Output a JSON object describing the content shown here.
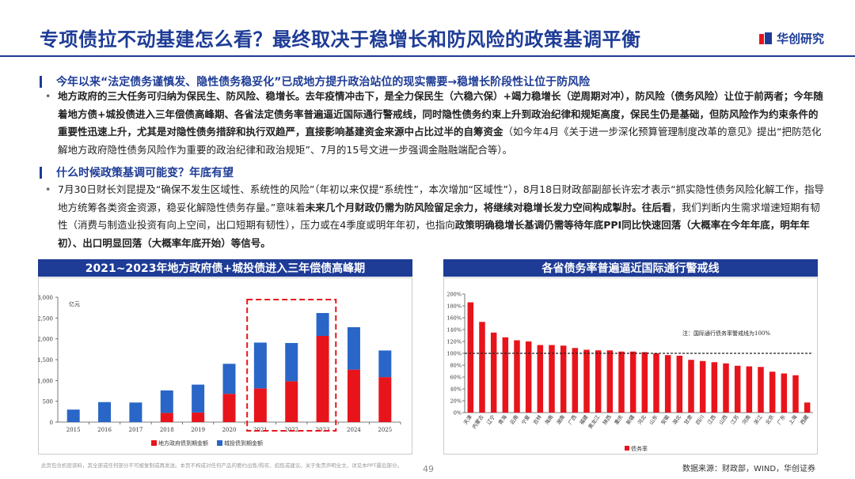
{
  "header": {
    "title": "专项债拉不动基建怎么看？最终取决于稳增长和防风险的政策基调平衡",
    "logo_text": "华创研究"
  },
  "section1": {
    "heading": "今年以来“法定债务谨慎发、隐性债务稳妥化”已成地方提升政治站位的现实需要→稳增长阶段性让位于防风险",
    "bullet": "•",
    "p_bold": "地方政府的三大任务可归纳为保民生、防风险、稳增长。去年疫情冲击下，是全力保民生（六稳六保）+竭力稳增长（逆周期对冲），防风险（债务风险）让位于前两者；今年随着地方债+城投债进入三年偿债高峰期、各省法定债务率普遍逼近国际通行警戒线，同时隐性债务约束上升到政治纪律和规矩高度，保民生仍是基础，但防风险作为约束条件的重要性迅速上升，尤其是对隐性债务措辞和执行双趋严，直接影响基建资金来源中占比过半的自筹资金",
    "p_normal": "（如今年4月《关于进一步深化预算管理制度改革的意见》提出“把防范化解地方政府隐性债务风险作为重要的政治纪律和政治规矩”、7月的15号文进一步强调金融融端配合等）。"
  },
  "section2": {
    "heading": "什么时候政策基调可能变？年底有望",
    "bullet": "•",
    "p1": "7月30日财长刘昆提及“确保不发生区域性、系统性的风险”（年初以来仅提“系统性”，本次增加“区域性”），8月18日财政部副部长许宏才表示“抓实隐性债务风险化解工作，指导地方统筹各类资金资源，稳妥化解隐性债务存量。”意味着",
    "p1_bold": "未来几个月财政仍需为防风险留足余力，将继续对稳增长发力空间构成掣肘。",
    "p2_bold": "往后看",
    "p2": "，我们判断内生需求增速短期有韧性（消费与制造业投资有向上空间，出口短期有韧性），压力或在4季度或明年年初，也指向",
    "p2_bold2": "政策明确稳增长基调仍需等待年底PPI同比快速回落（大概率在今年年底，明年年初）、出口明显回落（大概率年底开始）等信号。"
  },
  "left_chart": {
    "title": "2021~2023年地方政府债+城投债进入三年偿债高峰期",
    "unit": "亿元",
    "legend_local": "地方政府债到期金额",
    "legend_lgfv": "城投债到期金额"
  },
  "right_chart": {
    "title": "各省债务率普遍逼近国际通行警戒线",
    "note": "注：国际通行债务率警戒线为100%",
    "legend": "债务率"
  },
  "chart_data": [
    {
      "type": "bar",
      "stacked": true,
      "title": "2021~2023年地方政府债+城投债进入三年偿债高峰期",
      "ylabel": "亿元",
      "categories": [
        "2015",
        "2016",
        "2017",
        "2018",
        "2019",
        "2020",
        "2021",
        "2022",
        "2023",
        "2024",
        "2025"
      ],
      "series": [
        {
          "name": "地方政府债到期金额",
          "color": "#e8141c",
          "values": [
            0,
            0,
            0,
            220,
            230,
            680,
            810,
            980,
            2070,
            1260,
            1080
          ]
        },
        {
          "name": "城投债到期金额",
          "color": "#2966c7",
          "values": [
            300,
            480,
            470,
            540,
            670,
            720,
            1100,
            920,
            550,
            1020,
            640
          ]
        }
      ],
      "ylim": [
        0,
        3000
      ],
      "yticks": [
        "0",
        "500",
        "1,000",
        "1,500",
        "2,000",
        "2,500",
        "3,000"
      ],
      "highlight": [
        "2021",
        "2023"
      ]
    },
    {
      "type": "bar",
      "title": "各省债务率普遍逼近国际通行警戒线",
      "categories": [
        "天津",
        "内蒙古",
        "辽宁",
        "青海",
        "云南",
        "宁夏",
        "吉林",
        "海南",
        "湖南",
        "广西",
        "福建",
        "黑龙江",
        "陕西",
        "重庆",
        "新疆",
        "河北",
        "山东",
        "安徽",
        "湖北",
        "甘肃",
        "四川",
        "江西",
        "山西",
        "江苏",
        "河南",
        "浙江",
        "北京",
        "广东",
        "上海",
        "西藏"
      ],
      "series": [
        {
          "name": "债务率",
          "color": "#e8141c",
          "values": [
            186,
            153,
            135,
            127,
            122,
            120,
            114,
            114,
            113,
            109,
            106,
            105,
            105,
            103,
            103,
            102,
            100,
            97,
            96,
            89,
            87,
            85,
            83,
            79,
            78,
            77,
            69,
            66,
            63,
            17
          ]
        }
      ],
      "reference_line": 100,
      "ylim": [
        0,
        200
      ],
      "yticks": [
        "0%",
        "20%",
        "40%",
        "60%",
        "80%",
        "100%",
        "120%",
        "140%",
        "160%",
        "180%",
        "200%"
      ]
    }
  ],
  "footer": {
    "disclaimer": "此页包含机密资料，其全部或任何部分不可被复制或再发送。本页不构成对任何产品的要约出售/购买、招揽或建议。关于免责声明全文，详见本PPT最后部分。",
    "page": "49",
    "source": "数据来源：财政部，WIND，华创证券"
  }
}
